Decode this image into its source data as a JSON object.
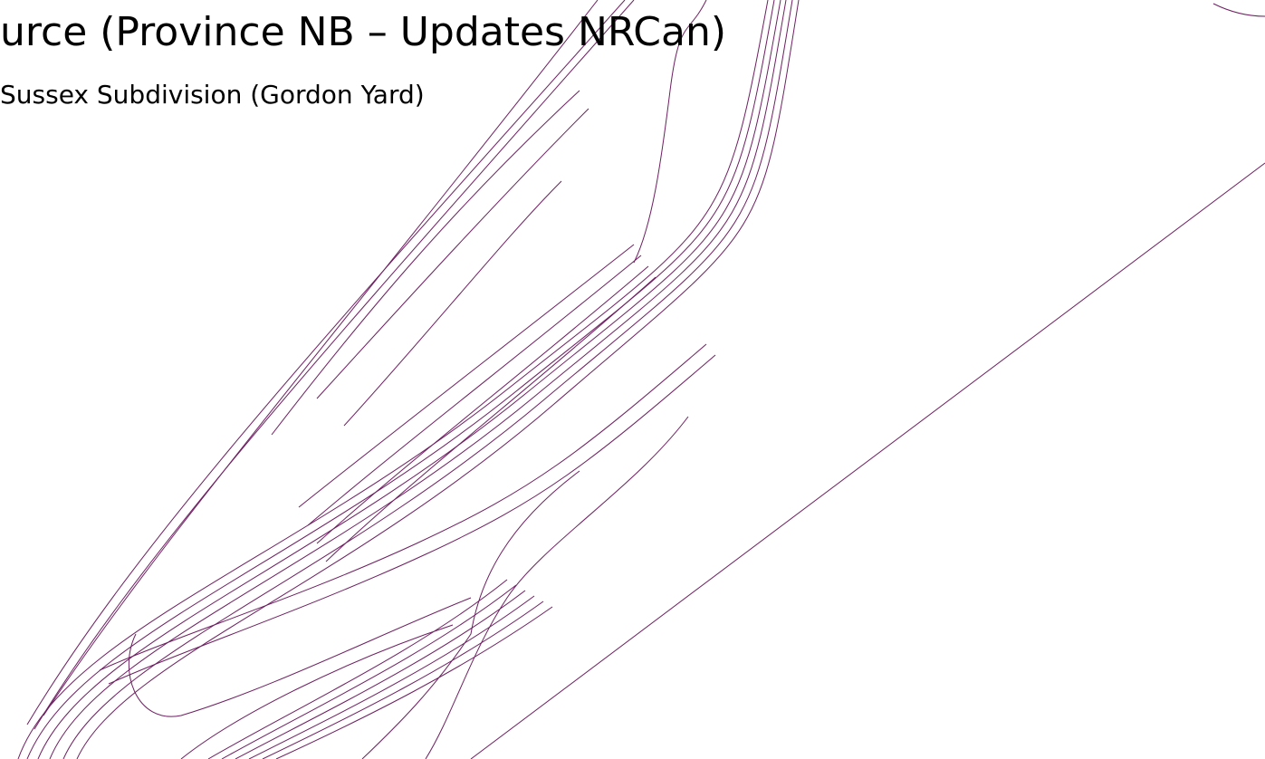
{
  "header": {
    "title": "urce (Province NB – Updates NRCan)",
    "subtitle": "Sussex Subdivision (Gordon Yard)"
  }
}
